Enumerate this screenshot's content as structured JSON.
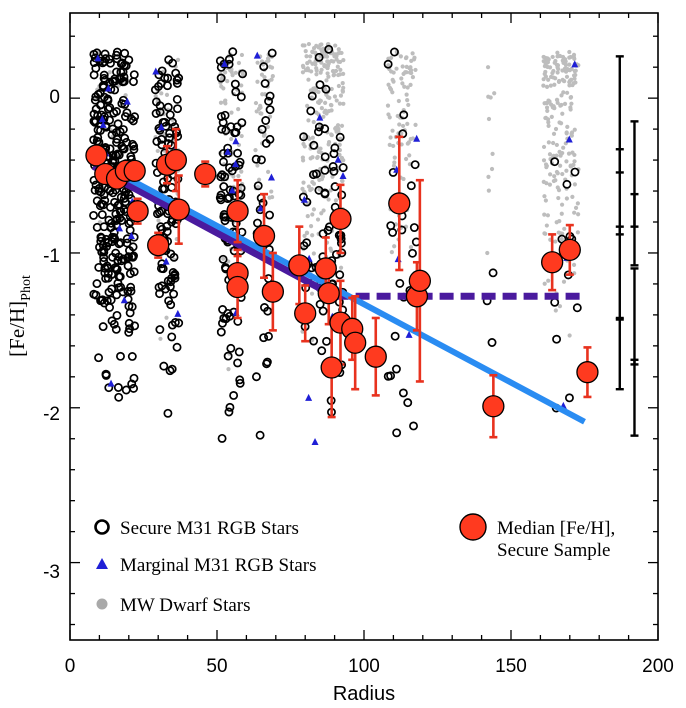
{
  "chart_data": {
    "type": "scatter",
    "xlabel": "Radius",
    "ylabel_main": "[Fe/H]",
    "ylabel_sub": "Phot",
    "xlim": [
      0,
      200
    ],
    "ylim": [
      -3.5,
      0.55
    ],
    "x_ticks": [
      0,
      50,
      100,
      150,
      200
    ],
    "y_ticks": [
      0,
      -1,
      -2,
      -3
    ],
    "x_tick_labels": [
      "0",
      "50",
      "100",
      "150",
      "200"
    ],
    "y_tick_labels": [
      "0",
      "-1",
      "-2",
      "-3"
    ],
    "colors": {
      "secure": "#000000",
      "marginal": "#1f1fd6",
      "dwarf": "#bdbdbd",
      "median_fill": "#ff3a1f",
      "error_bar": "#e8321e",
      "fit_line": "#2a8cf2",
      "fit_broken": "#4a1a9e"
    },
    "legend": {
      "secure": "Secure M31 RGB Stars",
      "marginal": "Marginal M31 RGB Stars",
      "dwarf": "MW Dwarf Stars",
      "median_line1": "Median [Fe/H],",
      "median_line2": "Secure Sample"
    },
    "fields": [
      {
        "x": 15,
        "spread": 7,
        "n_secure": 300,
        "n_marginal": 12,
        "n_dwarf": 20,
        "ymin": -2.25,
        "ymax": 0.3
      },
      {
        "x": 33,
        "spread": 4,
        "n_secure": 110,
        "n_marginal": 6,
        "n_dwarf": 40,
        "ymin": -2.3,
        "ymax": 0.25
      },
      {
        "x": 55,
        "spread": 4,
        "n_secure": 95,
        "n_marginal": 8,
        "n_dwarf": 70,
        "ymin": -2.25,
        "ymax": 0.3
      },
      {
        "x": 66,
        "spread": 3,
        "n_secure": 30,
        "n_marginal": 3,
        "n_dwarf": 50,
        "ymin": -2.2,
        "ymax": 0.3
      },
      {
        "x": 86,
        "spread": 7,
        "n_secure": 70,
        "n_marginal": 10,
        "n_dwarf": 250,
        "ymin": -2.3,
        "ymax": 0.35
      },
      {
        "x": 113,
        "spread": 5,
        "n_secure": 25,
        "n_marginal": 4,
        "n_dwarf": 90,
        "ymin": -2.2,
        "ymax": 0.3
      },
      {
        "x": 143,
        "spread": 1.5,
        "n_secure": 3,
        "n_marginal": 0,
        "n_dwarf": 10,
        "ymin": -2.1,
        "ymax": 0.2
      },
      {
        "x": 167,
        "spread": 6,
        "n_secure": 12,
        "n_marginal": 4,
        "n_dwarf": 220,
        "ymin": -2.3,
        "ymax": 0.3
      }
    ],
    "medians": [
      {
        "x": 9,
        "y": -0.37,
        "err": 0
      },
      {
        "x": 12,
        "y": -0.49,
        "err": 0
      },
      {
        "x": 16,
        "y": -0.52,
        "err": 0
      },
      {
        "x": 19,
        "y": -0.47,
        "err": 0
      },
      {
        "x": 22,
        "y": -0.47,
        "err": 0
      },
      {
        "x": 23,
        "y": -0.73,
        "err": 0.08
      },
      {
        "x": 30,
        "y": -0.95,
        "err": 0.08
      },
      {
        "x": 33,
        "y": -0.43,
        "err": 0.12
      },
      {
        "x": 36,
        "y": -0.4,
        "err": 0.2
      },
      {
        "x": 37,
        "y": -0.72,
        "err": 0.22
      },
      {
        "x": 46,
        "y": -0.49,
        "err": 0.08
      },
      {
        "x": 57,
        "y": -0.73,
        "err": 0.2
      },
      {
        "x": 57,
        "y": -1.13,
        "err": 0.15
      },
      {
        "x": 57,
        "y": -1.22,
        "err": 0.2
      },
      {
        "x": 66,
        "y": -0.89,
        "err": 0.27
      },
      {
        "x": 69,
        "y": -1.25,
        "err": 0.25
      },
      {
        "x": 78,
        "y": -1.08,
        "err": 0.25
      },
      {
        "x": 80,
        "y": -1.39,
        "err": 0.18
      },
      {
        "x": 87,
        "y": -1.1,
        "err": 0.2
      },
      {
        "x": 88,
        "y": -1.26,
        "err": 0.2
      },
      {
        "x": 89,
        "y": -1.74,
        "err": 0.32
      },
      {
        "x": 92,
        "y": -0.78,
        "err": 0.22
      },
      {
        "x": 92,
        "y": -1.45,
        "err": 0.27
      },
      {
        "x": 96,
        "y": -1.49,
        "err": 0.2
      },
      {
        "x": 97,
        "y": -1.58,
        "err": 0.3
      },
      {
        "x": 104,
        "y": -1.67,
        "err": 0.25
      },
      {
        "x": 112,
        "y": -0.68,
        "err": 0.43
      },
      {
        "x": 118,
        "y": -1.28,
        "err": 0.22
      },
      {
        "x": 119,
        "y": -1.18,
        "err": 0.65
      },
      {
        "x": 144,
        "y": -1.99,
        "err": 0.2
      },
      {
        "x": 164,
        "y": -1.06,
        "err": 0.18
      },
      {
        "x": 170,
        "y": -0.98,
        "err": 0.16
      },
      {
        "x": 176,
        "y": -1.77,
        "err": 0.16
      }
    ],
    "fit_line": {
      "x": [
        8,
        175
      ],
      "y": [
        -0.4,
        -2.09
      ]
    },
    "fit_broken_solid": {
      "x": [
        8,
        90
      ],
      "y": [
        -0.44,
        -1.28
      ]
    },
    "fit_broken_dashed": {
      "x": [
        90,
        175
      ],
      "y": [
        -1.28,
        -1.28
      ]
    },
    "right_error_bars": [
      {
        "x": 187,
        "y_low": -0.48,
        "y_high": 0.27
      },
      {
        "x": 192,
        "y_low": -0.83,
        "y_high": -0.15
      },
      {
        "x": 187,
        "y_low": -0.88,
        "y_high": -0.33
      },
      {
        "x": 192,
        "y_low": -1.08,
        "y_high": -0.62
      },
      {
        "x": 187,
        "y_low": -1.43,
        "y_high": -0.83
      },
      {
        "x": 192,
        "y_low": -1.72,
        "y_high": -1.1
      },
      {
        "x": 187,
        "y_low": -1.88,
        "y_high": -1.42
      },
      {
        "x": 192,
        "y_low": -2.18,
        "y_high": -1.69
      }
    ]
  }
}
